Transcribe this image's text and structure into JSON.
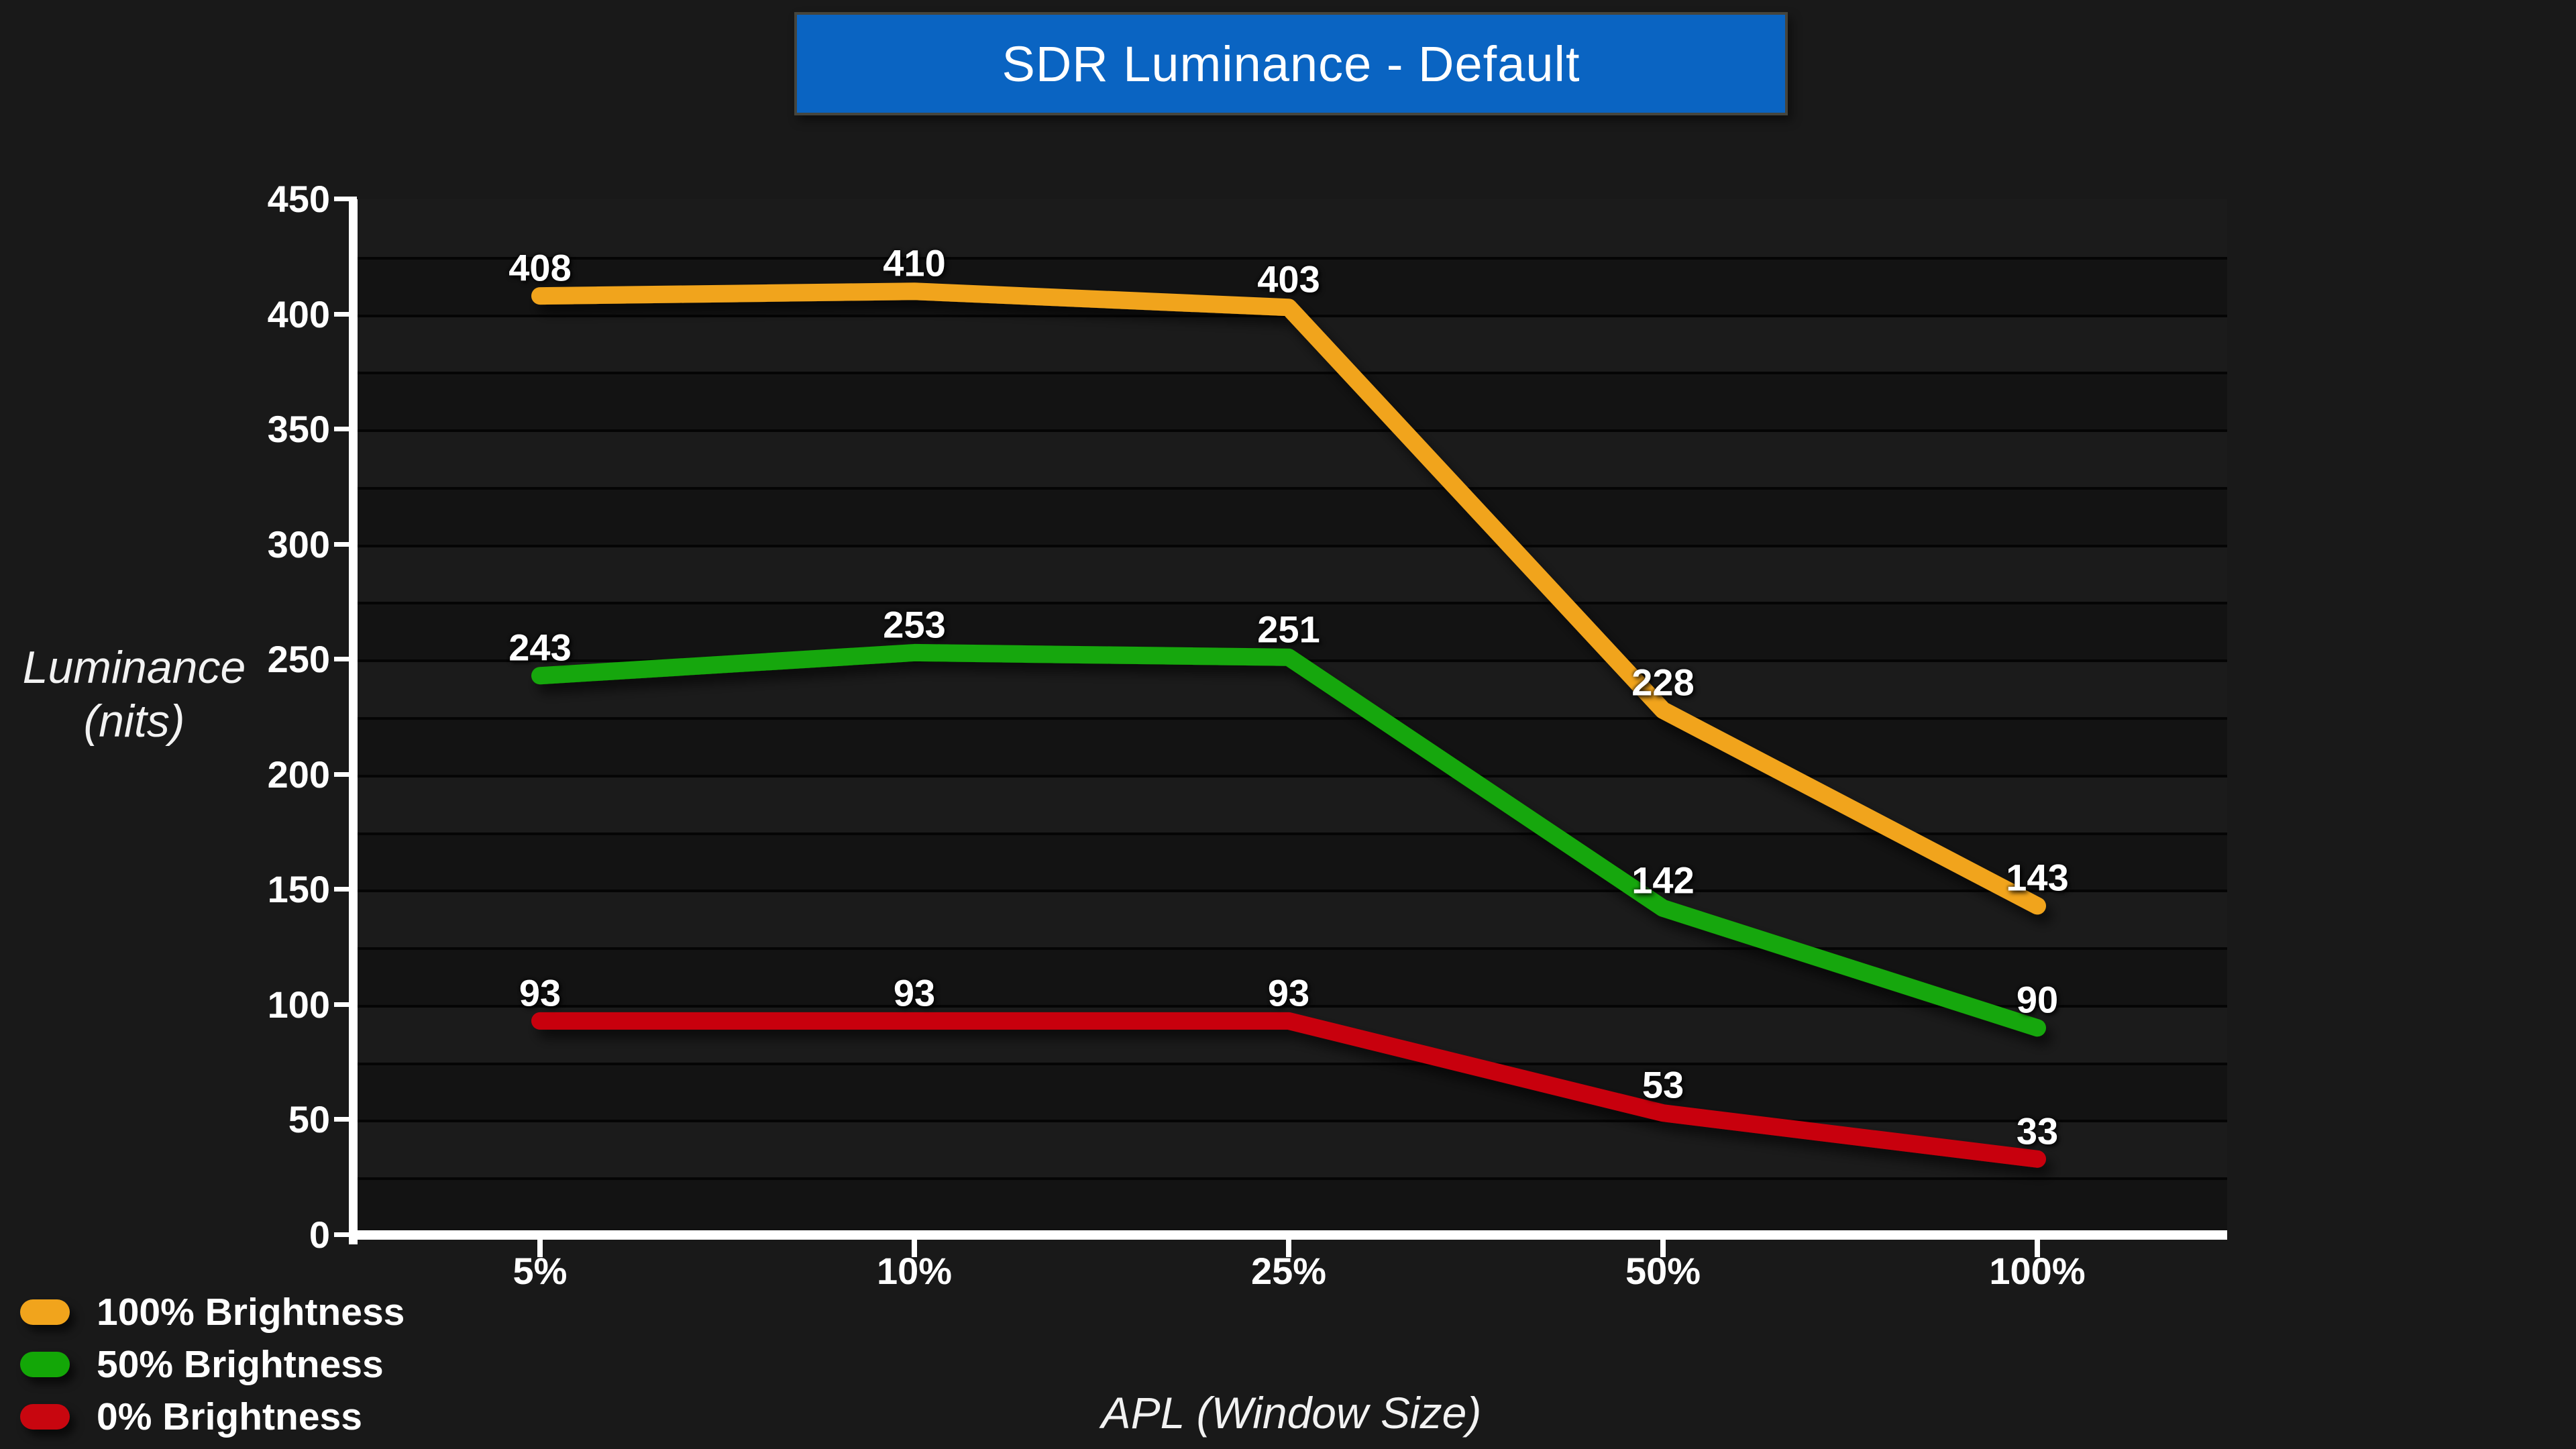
{
  "title": "SDR Luminance - Default",
  "colors": {
    "background": "#191919",
    "title_bg": "#0A64C2",
    "title_border": "#45453E",
    "band_light": "#1B1B1B",
    "band_dark": "#131313",
    "gridline": "#050505",
    "axis": "#FFFFFF",
    "text": "#FFFFFF"
  },
  "chart_data": {
    "type": "line",
    "title": "SDR Luminance - Default",
    "xlabel": "APL (Window Size)",
    "ylabel": "Luminance\n(nits)",
    "categories": [
      "5%",
      "10%",
      "25%",
      "50%",
      "100%"
    ],
    "series": [
      {
        "name": "100% Brightness",
        "color": "#F1A41C",
        "values": [
          408,
          410,
          403,
          228,
          143
        ]
      },
      {
        "name": "50% Brightness",
        "color": "#13A707",
        "values": [
          243,
          253,
          251,
          142,
          90
        ]
      },
      {
        "name": "0% Brightness",
        "color": "#C8060F",
        "values": [
          93,
          93,
          93,
          53,
          33
        ]
      }
    ],
    "ylim": [
      0,
      450
    ],
    "y_tick_step": 50,
    "grid_step": 25,
    "grid": true,
    "legend_position": "bottom-left",
    "data_labels": true
  }
}
